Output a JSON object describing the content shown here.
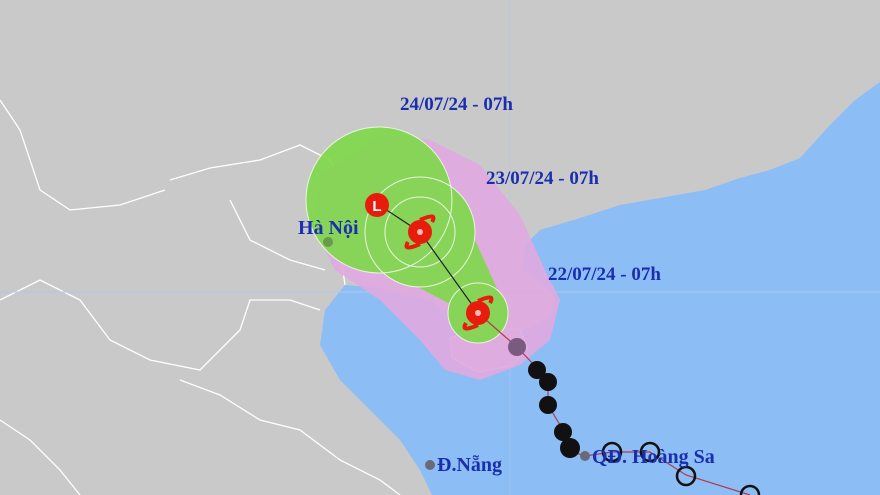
{
  "map": {
    "forecast_labels": [
      "24/07/24 - 07h",
      "23/07/24 - 07h",
      "22/07/24 - 07h"
    ],
    "places": {
      "hanoi": "Hà Nội",
      "danang": "Đ.Nẵng",
      "hoangsa": "QĐ. Hoàng Sa"
    },
    "low_pressure_symbol": "L",
    "colors": {
      "land": "#c9c9c9",
      "sea": "#8dbdf5",
      "risk_cone": "#e0a8e0",
      "wind_zone": "#7fd94a",
      "storm_icon": "#e81c0c",
      "past_track_icon": "#111111",
      "label": "#1a2fb0"
    }
  }
}
